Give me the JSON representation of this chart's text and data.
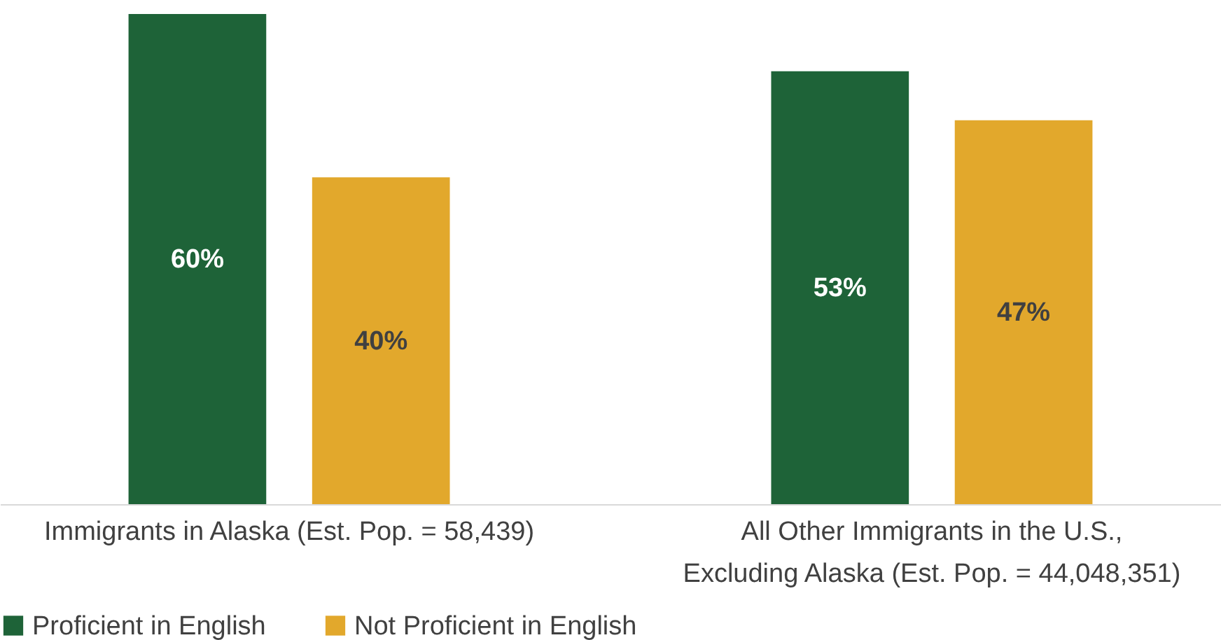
{
  "chart_data": {
    "type": "bar",
    "categories": [
      "Immigrants in Alaska (Est. Pop. = 58,439)",
      "All Other Immigrants in the U.S.,\nExcluding Alaska (Est. Pop. = 44,048,351)"
    ],
    "series": [
      {
        "name": "Proficient in English",
        "color": "#1e6338",
        "values": [
          60,
          53
        ],
        "value_labels": [
          "60%",
          "53%"
        ]
      },
      {
        "name": "Not Proficient in English",
        "color": "#e2a82c",
        "values": [
          40,
          47
        ],
        "value_labels": [
          "40%",
          "47%"
        ]
      }
    ],
    "legend": "bottom",
    "grid": false
  }
}
